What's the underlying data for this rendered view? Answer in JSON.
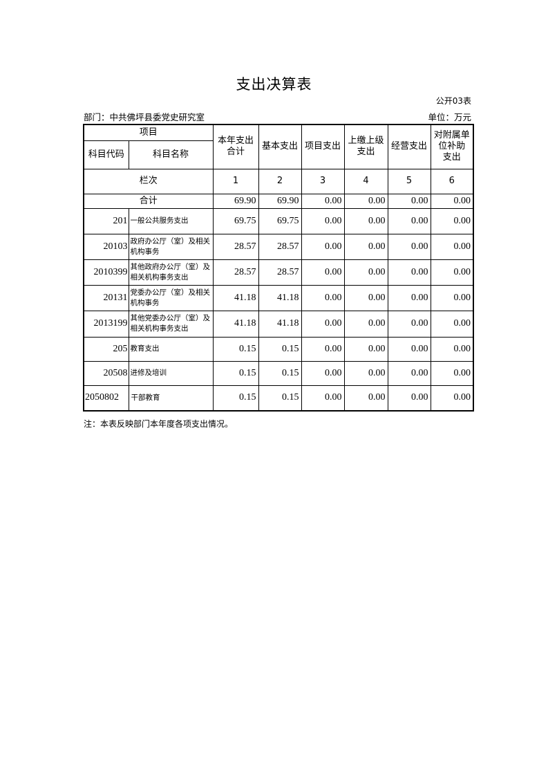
{
  "title": "支出决算表",
  "form_no": "公开03表",
  "department": "部门：中共佛坪县委党史研究室",
  "unit": "单位：万元",
  "headers": {
    "item": "项目",
    "code": "科目代码",
    "name": "科目名称",
    "col1": [
      "本年支出",
      "合计"
    ],
    "col2": "基本支出",
    "col3": "项目支出",
    "col4": [
      "上缴上级",
      "支出"
    ],
    "col5": "经营支出",
    "col6": [
      "对附属单",
      "位补助",
      "支出"
    ]
  },
  "index_row": {
    "label": "栏次",
    "values": [
      "1",
      "2",
      "3",
      "4",
      "5",
      "6"
    ]
  },
  "total_row": {
    "label": "合计",
    "values": [
      "69.90",
      "69.90",
      "0.00",
      "0.00",
      "0.00",
      "0.00"
    ]
  },
  "rows": [
    {
      "code": "201",
      "name": "一般公共服务支出",
      "values": [
        "69.75",
        "69.75",
        "0.00",
        "0.00",
        "0.00",
        "0.00"
      ]
    },
    {
      "code": "20103",
      "name": "政府办公厅（室）及相关机构事务",
      "values": [
        "28.57",
        "28.57",
        "0.00",
        "0.00",
        "0.00",
        "0.00"
      ]
    },
    {
      "code": "2010399",
      "name": "其他政府办公厅（室）及相关机构事务支出",
      "values": [
        "28.57",
        "28.57",
        "0.00",
        "0.00",
        "0.00",
        "0.00"
      ]
    },
    {
      "code": "20131",
      "name": "党委办公厅（室）及相关机构事务",
      "values": [
        "41.18",
        "41.18",
        "0.00",
        "0.00",
        "0.00",
        "0.00"
      ]
    },
    {
      "code": "2013199",
      "name": "其他党委办公厅（室）及相关机构事务支出",
      "values": [
        "41.18",
        "41.18",
        "0.00",
        "0.00",
        "0.00",
        "0.00"
      ]
    },
    {
      "code": "205",
      "name": "教育支出",
      "values": [
        "0.15",
        "0.15",
        "0.00",
        "0.00",
        "0.00",
        "0.00"
      ]
    },
    {
      "code": "20508",
      "name": "进修及培训",
      "values": [
        "0.15",
        "0.15",
        "0.00",
        "0.00",
        "0.00",
        "0.00"
      ]
    },
    {
      "code": "2050802",
      "name": "干部教育",
      "values": [
        "0.15",
        "0.15",
        "0.00",
        "0.00",
        "0.00",
        "0.00"
      ]
    }
  ],
  "note": "注：本表反映部门本年度各项支出情况。"
}
